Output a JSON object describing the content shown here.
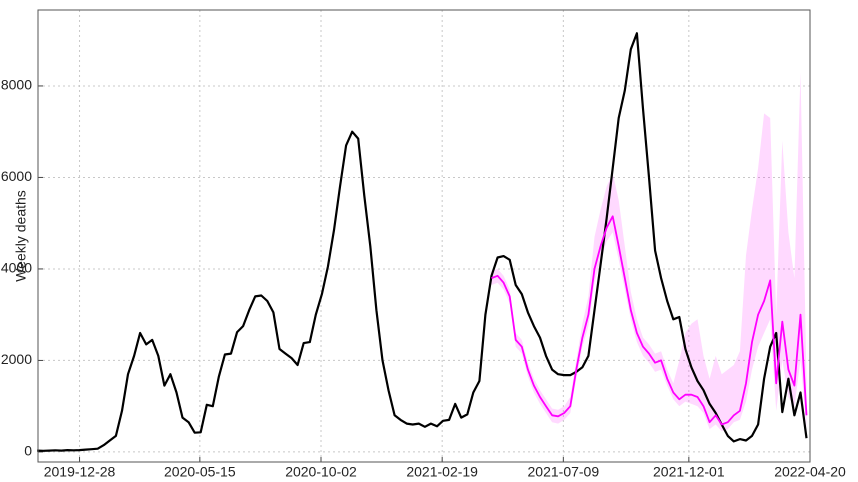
{
  "chart_data": {
    "type": "line",
    "ylabel": "Weekly deaths",
    "x": [
      "2019-11-09",
      "2019-11-16",
      "2019-11-23",
      "2019-11-30",
      "2019-12-07",
      "2019-12-14",
      "2019-12-21",
      "2019-12-28",
      "2020-01-04",
      "2020-01-11",
      "2020-01-18",
      "2020-01-25",
      "2020-02-01",
      "2020-02-08",
      "2020-02-15",
      "2020-02-22",
      "2020-02-29",
      "2020-03-07",
      "2020-03-14",
      "2020-03-21",
      "2020-03-28",
      "2020-04-04",
      "2020-04-11",
      "2020-04-18",
      "2020-04-25",
      "2020-05-02",
      "2020-05-09",
      "2020-05-16",
      "2020-05-23",
      "2020-05-30",
      "2020-06-06",
      "2020-06-13",
      "2020-06-20",
      "2020-06-27",
      "2020-07-04",
      "2020-07-11",
      "2020-07-18",
      "2020-07-25",
      "2020-08-01",
      "2020-08-08",
      "2020-08-15",
      "2020-08-22",
      "2020-08-29",
      "2020-09-05",
      "2020-09-12",
      "2020-09-19",
      "2020-09-26",
      "2020-10-03",
      "2020-10-10",
      "2020-10-17",
      "2020-10-24",
      "2020-10-31",
      "2020-11-07",
      "2020-11-14",
      "2020-11-21",
      "2020-11-28",
      "2020-12-05",
      "2020-12-12",
      "2020-12-19",
      "2020-12-26",
      "2021-01-02",
      "2021-01-09",
      "2021-01-16",
      "2021-01-23",
      "2021-01-30",
      "2021-02-06",
      "2021-02-13",
      "2021-02-20",
      "2021-02-27",
      "2021-03-06",
      "2021-03-13",
      "2021-03-20",
      "2021-03-27",
      "2021-04-03",
      "2021-04-10",
      "2021-04-17",
      "2021-04-24",
      "2021-05-01",
      "2021-05-08",
      "2021-05-15",
      "2021-05-22",
      "2021-05-29",
      "2021-06-05",
      "2021-06-12",
      "2021-06-19",
      "2021-06-26",
      "2021-07-03",
      "2021-07-10",
      "2021-07-17",
      "2021-07-24",
      "2021-07-31",
      "2021-08-07",
      "2021-08-14",
      "2021-08-21",
      "2021-08-28",
      "2021-09-04",
      "2021-09-11",
      "2021-09-18",
      "2021-09-25",
      "2021-10-02",
      "2021-10-09",
      "2021-10-16",
      "2021-10-23",
      "2021-10-30",
      "2021-11-06",
      "2021-11-13",
      "2021-11-20",
      "2021-11-27",
      "2021-12-04",
      "2021-12-11",
      "2021-12-18",
      "2021-12-25",
      "2022-01-01",
      "2022-01-08",
      "2022-01-15",
      "2022-01-22",
      "2022-01-29",
      "2022-02-05",
      "2022-02-12",
      "2022-02-19",
      "2022-02-26",
      "2022-03-05",
      "2022-03-12",
      "2022-03-19",
      "2022-03-26",
      "2022-04-02",
      "2022-04-09",
      "2022-04-16"
    ],
    "series": [
      {
        "color": "#000000",
        "values": [
          30,
          25,
          30,
          35,
          30,
          40,
          35,
          40,
          50,
          60,
          70,
          150,
          250,
          350,
          900,
          1700,
          2100,
          2600,
          2350,
          2450,
          2100,
          1450,
          1700,
          1300,
          750,
          650,
          420,
          430,
          1030,
          1000,
          1650,
          2130,
          2150,
          2620,
          2750,
          3100,
          3400,
          3420,
          3300,
          3050,
          2250,
          2150,
          2050,
          1900,
          2380,
          2400,
          3000,
          3450,
          4050,
          4850,
          5800,
          6700,
          7000,
          6850,
          5600,
          4500,
          3100,
          2000,
          1350,
          800,
          700,
          620,
          600,
          620,
          550,
          620,
          560,
          680,
          700,
          1050,
          750,
          820,
          1300,
          1550,
          3000,
          3850,
          4250,
          4280,
          4200,
          3650,
          3450,
          3050,
          2750,
          2500,
          2100,
          1800,
          1700,
          1680,
          1680,
          1750,
          1850,
          2100,
          3100,
          4100,
          5100,
          6200,
          7300,
          7900,
          8800,
          9150,
          7500,
          6000,
          4400,
          3800,
          3300,
          2900,
          2950,
          2250,
          1850,
          1550,
          1350,
          1050,
          850,
          600,
          350,
          230,
          280,
          250,
          350,
          600,
          1600,
          2300,
          2600,
          870,
          1600,
          800,
          1300,
          300
        ]
      },
      {
        "color": "#ff00ff",
        "values": [
          null,
          null,
          null,
          null,
          null,
          null,
          null,
          null,
          null,
          null,
          null,
          null,
          null,
          null,
          null,
          null,
          null,
          null,
          null,
          null,
          null,
          null,
          null,
          null,
          null,
          null,
          null,
          null,
          null,
          null,
          null,
          null,
          null,
          null,
          null,
          null,
          null,
          null,
          null,
          null,
          null,
          null,
          null,
          null,
          null,
          null,
          null,
          null,
          null,
          null,
          null,
          null,
          null,
          null,
          null,
          null,
          null,
          null,
          null,
          null,
          null,
          null,
          null,
          null,
          null,
          null,
          null,
          null,
          null,
          null,
          null,
          null,
          null,
          null,
          null,
          3800,
          3850,
          3700,
          3400,
          2450,
          2300,
          1800,
          1450,
          1200,
          1000,
          800,
          780,
          850,
          1000,
          1800,
          2500,
          3000,
          4000,
          4500,
          4900,
          5150,
          4500,
          3800,
          3100,
          2600,
          2300,
          2150,
          1950,
          2000,
          1600,
          1300,
          1150,
          1250,
          1250,
          1200,
          1000,
          650,
          800,
          600,
          650,
          800,
          900,
          1500,
          2400,
          3000,
          3300,
          3750,
          1500,
          2850,
          1800,
          1450,
          3000,
          800
        ]
      }
    ],
    "band": {
      "color": "#ff00ff",
      "upper": [
        null,
        null,
        null,
        null,
        null,
        null,
        null,
        null,
        null,
        null,
        null,
        null,
        null,
        null,
        null,
        null,
        null,
        null,
        null,
        null,
        null,
        null,
        null,
        null,
        null,
        null,
        null,
        null,
        null,
        null,
        null,
        null,
        null,
        null,
        null,
        null,
        null,
        null,
        null,
        null,
        null,
        null,
        null,
        null,
        null,
        null,
        null,
        null,
        null,
        null,
        null,
        null,
        null,
        null,
        null,
        null,
        null,
        null,
        null,
        null,
        null,
        null,
        null,
        null,
        null,
        null,
        null,
        null,
        null,
        null,
        null,
        null,
        null,
        null,
        null,
        3950,
        4000,
        3850,
        3550,
        2600,
        2450,
        1950,
        1600,
        1350,
        1150,
        950,
        920,
        1000,
        1200,
        2000,
        2800,
        3400,
        4700,
        5300,
        5800,
        6100,
        5500,
        4500,
        3500,
        2900,
        2500,
        2350,
        2150,
        2200,
        1800,
        1500,
        2000,
        2600,
        2800,
        2900,
        2100,
        1600,
        2100,
        1700,
        1800,
        1900,
        2200,
        4300,
        5300,
        6200,
        7400,
        7300,
        3000,
        6800,
        4800,
        3800,
        8300,
        1600
      ],
      "lower": [
        null,
        null,
        null,
        null,
        null,
        null,
        null,
        null,
        null,
        null,
        null,
        null,
        null,
        null,
        null,
        null,
        null,
        null,
        null,
        null,
        null,
        null,
        null,
        null,
        null,
        null,
        null,
        null,
        null,
        null,
        null,
        null,
        null,
        null,
        null,
        null,
        null,
        null,
        null,
        null,
        null,
        null,
        null,
        null,
        null,
        null,
        null,
        null,
        null,
        null,
        null,
        null,
        null,
        null,
        null,
        null,
        null,
        null,
        null,
        null,
        null,
        null,
        null,
        null,
        null,
        null,
        null,
        null,
        null,
        null,
        null,
        null,
        null,
        null,
        null,
        3650,
        3700,
        3550,
        3250,
        2300,
        2150,
        1650,
        1300,
        1050,
        850,
        650,
        620,
        700,
        850,
        1600,
        2300,
        2750,
        3700,
        4200,
        4600,
        4800,
        4200,
        3550,
        2900,
        2400,
        2100,
        1950,
        1750,
        1800,
        1450,
        1150,
        1000,
        1100,
        1050,
        1000,
        850,
        500,
        600,
        450,
        500,
        650,
        700,
        1100,
        1800,
        2300,
        2600,
        2900,
        900,
        2000,
        1200,
        1000,
        2000,
        500
      ]
    },
    "xlim": [
      "2019-11-10",
      "2022-04-20"
    ],
    "xticks": [
      "2019-12-28",
      "2020-05-15",
      "2020-10-02",
      "2021-02-19",
      "2021-07-09",
      "2021-12-01",
      "2022-04-20"
    ],
    "ylim": [
      -220,
      9660
    ],
    "yticks": [
      0,
      2000,
      4000,
      6000,
      8000
    ],
    "grid": true
  }
}
